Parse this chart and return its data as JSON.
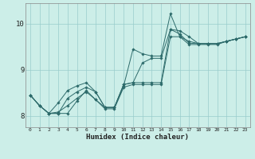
{
  "xlabel": "Humidex (Indice chaleur)",
  "bg_color": "#cceee8",
  "line_color": "#2d6b6b",
  "grid_color": "#99cccc",
  "xlim": [
    -0.5,
    23.5
  ],
  "ylim": [
    7.75,
    10.45
  ],
  "yticks": [
    8,
    9,
    10
  ],
  "xticks": [
    0,
    1,
    2,
    3,
    4,
    5,
    6,
    7,
    8,
    9,
    10,
    11,
    12,
    13,
    14,
    15,
    16,
    17,
    18,
    19,
    20,
    21,
    22,
    23
  ],
  "series": [
    [
      8.45,
      8.22,
      8.05,
      8.28,
      8.55,
      8.65,
      8.72,
      8.52,
      8.18,
      8.18,
      8.65,
      9.45,
      9.35,
      9.3,
      9.3,
      10.22,
      9.72,
      9.62,
      9.57,
      9.57,
      9.57,
      9.62,
      9.67,
      9.72
    ],
    [
      8.45,
      8.22,
      8.05,
      8.08,
      8.22,
      8.38,
      8.52,
      8.35,
      8.15,
      8.15,
      8.62,
      8.68,
      8.68,
      8.68,
      8.68,
      9.72,
      9.72,
      9.55,
      9.55,
      9.55,
      9.55,
      9.62,
      9.67,
      9.72
    ],
    [
      8.45,
      8.22,
      8.05,
      8.05,
      8.38,
      8.52,
      8.62,
      8.52,
      8.18,
      8.18,
      8.68,
      8.72,
      9.15,
      9.25,
      9.25,
      9.88,
      9.85,
      9.72,
      9.57,
      9.57,
      9.57,
      9.62,
      9.67,
      9.72
    ],
    [
      8.45,
      8.22,
      8.05,
      8.05,
      8.05,
      8.32,
      8.55,
      8.35,
      8.18,
      8.18,
      8.68,
      8.72,
      8.72,
      8.72,
      8.72,
      9.88,
      9.78,
      9.58,
      9.57,
      9.57,
      9.57,
      9.62,
      9.67,
      9.72
    ]
  ]
}
